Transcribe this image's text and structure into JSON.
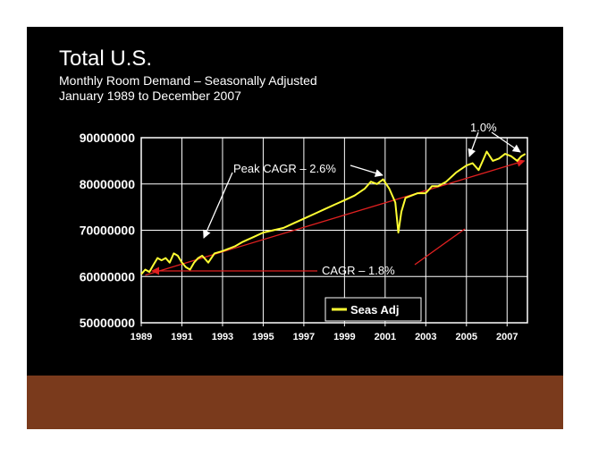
{
  "slide": {
    "title": "Total U.S.",
    "subtitle_line1": "Monthly Room Demand – Seasonally Adjusted",
    "subtitle_line2": "January 1989 to December 2007",
    "background_color": "#000000",
    "band_color": "#7a3a1c"
  },
  "chart_data": {
    "type": "line",
    "title": "Total U.S. Monthly Room Demand – Seasonally Adjusted",
    "xlabel": "",
    "ylabel": "",
    "xlim": [
      1989.0,
      2008.0
    ],
    "ylim": [
      50000000,
      90000000
    ],
    "y_ticks": [
      90000000,
      80000000,
      70000000,
      60000000,
      50000000
    ],
    "x_ticks": [
      1989,
      1991,
      1993,
      1995,
      1997,
      1999,
      2001,
      2003,
      2005,
      2007
    ],
    "grid": true,
    "legend": {
      "position": "bottom-right",
      "label": "Seas Adj"
    },
    "series": [
      {
        "name": "Seas Adj",
        "color": "#ffff33",
        "x": [
          1989.0,
          1989.2,
          1989.4,
          1989.6,
          1989.8,
          1990.0,
          1990.2,
          1990.4,
          1990.6,
          1990.8,
          1991.0,
          1991.2,
          1991.4,
          1991.6,
          1991.8,
          1992.0,
          1992.3,
          1992.6,
          1993.0,
          1993.3,
          1993.6,
          1994.0,
          1994.5,
          1995.0,
          1995.5,
          1996.0,
          1996.5,
          1997.0,
          1997.5,
          1998.0,
          1998.5,
          1999.0,
          1999.5,
          2000.0,
          2000.3,
          2000.6,
          2000.9,
          2001.2,
          2001.5,
          2001.65,
          2001.8,
          2002.0,
          2002.3,
          2002.6,
          2003.0,
          2003.3,
          2003.6,
          2004.0,
          2004.5,
          2005.0,
          2005.3,
          2005.6,
          2005.8,
          2006.0,
          2006.3,
          2006.6,
          2006.9,
          2007.2,
          2007.5,
          2007.7,
          2007.9
        ],
        "values": [
          60500000,
          61500000,
          61000000,
          62500000,
          64000000,
          63500000,
          64000000,
          63000000,
          65000000,
          64500000,
          63000000,
          62000000,
          61500000,
          63000000,
          64000000,
          64500000,
          63000000,
          65000000,
          65500000,
          66000000,
          66500000,
          67500000,
          68500000,
          69500000,
          70000000,
          70500000,
          71500000,
          72500000,
          73500000,
          74500000,
          75500000,
          76500000,
          77500000,
          79000000,
          80500000,
          80000000,
          81000000,
          79000000,
          76000000,
          69500000,
          74000000,
          77000000,
          77500000,
          78000000,
          78000000,
          79500000,
          79500000,
          80500000,
          82500000,
          84000000,
          84500000,
          83000000,
          85000000,
          87000000,
          85000000,
          85500000,
          86500000,
          86000000,
          85000000,
          86000000,
          86500000
        ]
      }
    ],
    "annotations": [
      {
        "text": "Peak CAGR – 2.6%",
        "color": "#ffffff"
      },
      {
        "text": "CAGR – 1.8%",
        "color": "#ffffff"
      },
      {
        "text": "1.0%",
        "color": "#ffffff"
      }
    ],
    "trend_line": {
      "from": [
        1989.2,
        60300000
      ],
      "to": [
        2007.85,
        85000000
      ],
      "color": "#e02020"
    }
  }
}
